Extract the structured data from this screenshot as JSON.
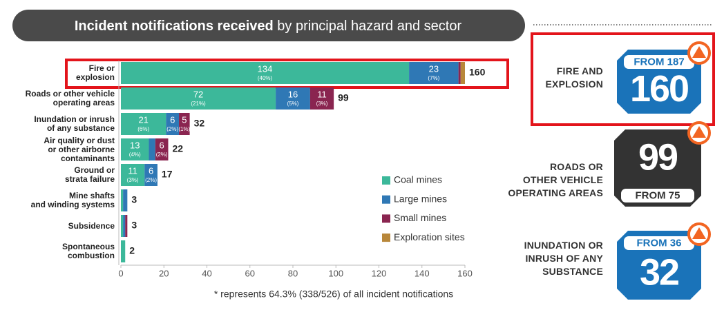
{
  "chart_data": {
    "type": "stacked_barh",
    "title": "Incident notifications received",
    "subtitle": "by principal hazard and sector",
    "categories": [
      "Fire or\nexplosion",
      "Roads or other vehicle\noperating areas",
      "Inundation or inrush\nof any substance",
      "Air quality or dust\nor other airborne\ncontaminants",
      "Ground or\nstrata failure",
      "Mine shafts\nand winding systems",
      "Subsidence",
      "Spontaneous\ncombustion"
    ],
    "series": [
      {
        "name": "Coal mines",
        "color": "#3cb89a",
        "values": [
          134,
          72,
          21,
          13,
          11,
          1,
          1,
          2
        ],
        "percent_labels": [
          "(40%)",
          "(21%)",
          "(6%)",
          "(4%)",
          "(3%)",
          null,
          null,
          null
        ]
      },
      {
        "name": "Large mines",
        "color": "#2f78b5",
        "values": [
          23,
          16,
          6,
          3,
          6,
          2,
          1,
          0
        ],
        "percent_labels": [
          "(7%)",
          "(5%)",
          "(2%)",
          null,
          "(2%)",
          null,
          null,
          null
        ]
      },
      {
        "name": "Small mines",
        "color": "#8a2550",
        "values": [
          1,
          11,
          5,
          6,
          0,
          0,
          1,
          0
        ],
        "percent_labels": [
          null,
          "(3%)",
          "(1%)",
          "(2%)",
          null,
          null,
          null,
          null
        ]
      },
      {
        "name": "Exploration sites",
        "color": "#b8873a",
        "values": [
          2,
          0,
          0,
          0,
          0,
          0,
          0,
          0
        ],
        "percent_labels": [
          null,
          null,
          null,
          null,
          null,
          null,
          null,
          null
        ]
      }
    ],
    "totals": [
      160,
      99,
      32,
      22,
      17,
      3,
      3,
      2
    ],
    "xlim": [
      0,
      160
    ],
    "xticks": [
      0,
      20,
      40,
      60,
      80,
      100,
      120,
      140,
      160
    ],
    "footnote": "* represents 64.3% (338/526) of all incident notifications"
  },
  "badges": [
    {
      "label": "FIRE AND\nEXPLOSION",
      "from": "FROM 187",
      "value": 160,
      "color": "#1a73b9"
    },
    {
      "label": "ROADS OR\nOTHER VEHICLE\nOPERATING AREAS",
      "from": "FROM 75",
      "value": 99,
      "color": "#333333"
    },
    {
      "label": "INUNDATION OR\nINRUSH OF ANY\nSUBSTANCE",
      "from": "FROM 36",
      "value": 32,
      "color": "#1a73b9"
    }
  ]
}
